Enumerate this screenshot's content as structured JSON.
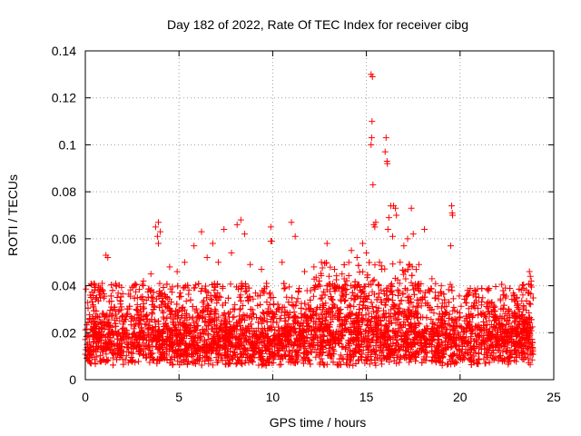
{
  "chart_data": {
    "type": "scatter",
    "title": "Day 182 of 2022, Rate Of TEC Index for receiver cibg",
    "xlabel": "GPS time / hours",
    "ylabel": "ROTI / TECUs",
    "xlim": [
      0,
      25
    ],
    "ylim": [
      0,
      0.14
    ],
    "xticks": [
      0,
      5,
      10,
      15,
      20,
      25
    ],
    "yticks": [
      0,
      0.02,
      0.04,
      0.06,
      0.08,
      0.1,
      0.12,
      0.14
    ],
    "xtick_labels": [
      "0",
      "5",
      "10",
      "15",
      "20",
      "25"
    ],
    "ytick_labels": [
      "0",
      "0.02",
      "0.04",
      "0.06",
      "0.08",
      "0.1",
      "0.12",
      "0.14"
    ],
    "grid": true,
    "marker": "+",
    "marker_color": "#ff0000",
    "series": [
      {
        "name": "ROTI",
        "points": [
          [
            15.25,
            0.13
          ],
          [
            15.32,
            0.129
          ],
          [
            15.3,
            0.11
          ],
          [
            15.28,
            0.103
          ],
          [
            15.25,
            0.1
          ],
          [
            16.05,
            0.103
          ],
          [
            16.0,
            0.097
          ],
          [
            16.1,
            0.093
          ],
          [
            16.12,
            0.092
          ],
          [
            15.35,
            0.083
          ],
          [
            16.3,
            0.074
          ],
          [
            16.45,
            0.074
          ],
          [
            16.55,
            0.073
          ],
          [
            17.4,
            0.073
          ],
          [
            19.55,
            0.074
          ],
          [
            19.6,
            0.07
          ],
          [
            19.58,
            0.071
          ],
          [
            16.2,
            0.069
          ],
          [
            16.6,
            0.07
          ],
          [
            15.5,
            0.067
          ],
          [
            15.4,
            0.066
          ],
          [
            15.45,
            0.065
          ],
          [
            3.9,
            0.067
          ],
          [
            3.75,
            0.065
          ],
          [
            4.0,
            0.063
          ],
          [
            3.85,
            0.061
          ],
          [
            8.3,
            0.068
          ],
          [
            8.1,
            0.066
          ],
          [
            8.5,
            0.062
          ],
          [
            9.9,
            0.065
          ],
          [
            11.0,
            0.067
          ],
          [
            11.2,
            0.061
          ],
          [
            6.2,
            0.063
          ],
          [
            7.4,
            0.064
          ],
          [
            16.15,
            0.064
          ],
          [
            17.5,
            0.062
          ],
          [
            17.2,
            0.06
          ],
          [
            18.1,
            0.064
          ],
          [
            19.5,
            0.057
          ],
          [
            9.95,
            0.059
          ],
          [
            9.9,
            0.059
          ],
          [
            3.9,
            0.058
          ],
          [
            5.8,
            0.057
          ],
          [
            6.8,
            0.058
          ],
          [
            12.9,
            0.058
          ],
          [
            14.2,
            0.055
          ],
          [
            14.8,
            0.058
          ],
          [
            16.4,
            0.061
          ],
          [
            17.0,
            0.057
          ],
          [
            1.1,
            0.053
          ],
          [
            1.2,
            0.052
          ],
          [
            0.9,
            0.041
          ],
          [
            0.3,
            0.035
          ],
          [
            0.5,
            0.038
          ],
          [
            1.7,
            0.035
          ],
          [
            2.6,
            0.04
          ],
          [
            3.1,
            0.042
          ],
          [
            3.5,
            0.045
          ],
          [
            4.5,
            0.048
          ],
          [
            4.9,
            0.046
          ],
          [
            5.3,
            0.05
          ],
          [
            6.5,
            0.052
          ],
          [
            7.1,
            0.05
          ],
          [
            7.8,
            0.054
          ],
          [
            8.8,
            0.049
          ],
          [
            9.4,
            0.047
          ],
          [
            10.5,
            0.05
          ],
          [
            11.7,
            0.046
          ],
          [
            12.2,
            0.048
          ],
          [
            12.6,
            0.05
          ],
          [
            13.3,
            0.047
          ],
          [
            13.7,
            0.045
          ],
          [
            14.5,
            0.052
          ],
          [
            15.0,
            0.054
          ],
          [
            15.7,
            0.05
          ],
          [
            16.8,
            0.05
          ],
          [
            17.8,
            0.049
          ],
          [
            18.5,
            0.043
          ],
          [
            19.0,
            0.04
          ],
          [
            20.4,
            0.038
          ],
          [
            21.0,
            0.035
          ],
          [
            21.5,
            0.033
          ],
          [
            22.3,
            0.036
          ],
          [
            22.9,
            0.034
          ],
          [
            23.4,
            0.031
          ],
          [
            23.7,
            0.046
          ],
          [
            23.75,
            0.044
          ],
          [
            23.8,
            0.042
          ]
        ],
        "band": {
          "x_range": [
            0,
            23.9
          ],
          "baseline_y": 0.017,
          "baseline_low_y": 0.006,
          "baseline_high_y": 0.03,
          "burst_upper_y": 0.045,
          "note": "dense cloud of + markers forming the bulk of the data"
        }
      }
    ]
  }
}
